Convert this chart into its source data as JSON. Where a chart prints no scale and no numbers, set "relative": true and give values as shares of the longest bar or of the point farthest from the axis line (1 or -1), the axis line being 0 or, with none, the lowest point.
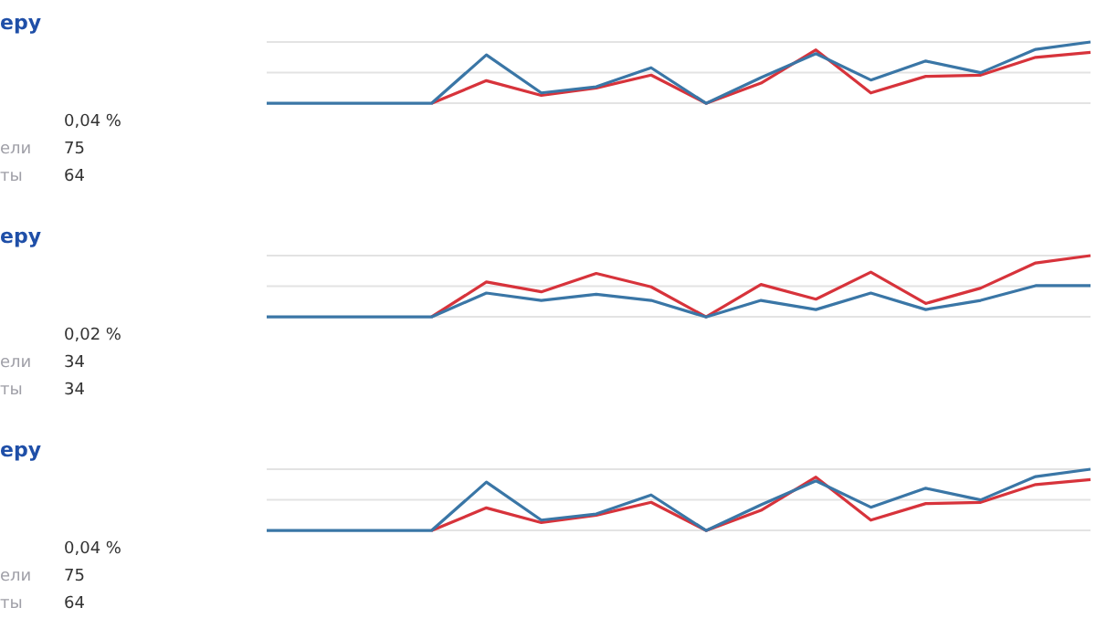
{
  "chart_data": [
    {
      "type": "other",
      "title": "еру",
      "annotations": [
        "0,04 %",
        "ели",
        "75",
        "ты",
        "64"
      ]
    },
    {
      "type": "line",
      "relative": true,
      "grid": "y",
      "legend": false,
      "marker": "none",
      "line_style": "solid",
      "categories": [
        null,
        null,
        null,
        null,
        null,
        null,
        null,
        null,
        null,
        null,
        null,
        null,
        null,
        null,
        null,
        null
      ],
      "ref_lines": [
        {
          "axis": "y",
          "value": 0.5,
          "color": "#e3e3e3"
        }
      ],
      "series": [
        {
          "color": "#3a76a6",
          "values": [
            0,
            0,
            0,
            0,
            0.79,
            0.17,
            0.27,
            0.58,
            0,
            0.42,
            0.81,
            0.38,
            0.69,
            0.5,
            0.88,
            1
          ]
        },
        {
          "color": "#d7333b",
          "values": [
            null,
            null,
            null,
            0,
            0.37,
            0.13,
            0.25,
            0.46,
            0,
            0.33,
            0.87,
            0.17,
            0.44,
            0.46,
            0.75,
            0.83
          ]
        }
      ]
    },
    {
      "type": "other",
      "title": "еру",
      "annotations": [
        "0,02 %",
        "ели",
        "34",
        "ты",
        "34"
      ]
    },
    {
      "type": "line",
      "relative": true,
      "grid": "y",
      "legend": false,
      "marker": "none",
      "line_style": "solid",
      "categories": [
        null,
        null,
        null,
        null,
        null,
        null,
        null,
        null,
        null,
        null,
        null,
        null,
        null,
        null,
        null,
        null
      ],
      "ref_lines": [
        {
          "axis": "y",
          "value": 0.5,
          "color": "#e3e3e3"
        }
      ],
      "series": [
        {
          "color": "#3a76a6",
          "values": [
            0,
            0,
            0,
            0,
            0.39,
            0.27,
            0.37,
            0.27,
            0,
            0.27,
            0.12,
            0.39,
            0.12,
            0.27,
            0.51,
            0.51
          ]
        },
        {
          "color": "#d7333b",
          "values": [
            null,
            null,
            null,
            0,
            0.57,
            0.41,
            0.71,
            0.49,
            0,
            0.53,
            0.29,
            0.73,
            0.22,
            0.47,
            0.88,
            1
          ]
        }
      ]
    },
    {
      "type": "other",
      "title": "еру",
      "annotations": [
        "0,04 %",
        "ели",
        "75",
        "ты",
        "64"
      ]
    },
    {
      "type": "line",
      "relative": true,
      "grid": "y",
      "legend": false,
      "marker": "none",
      "line_style": "solid",
      "categories": [
        null,
        null,
        null,
        null,
        null,
        null,
        null,
        null,
        null,
        null,
        null,
        null,
        null,
        null,
        null,
        null
      ],
      "ref_lines": [
        {
          "axis": "y",
          "value": 0.5,
          "color": "#e3e3e3"
        }
      ],
      "series": [
        {
          "color": "#3a76a6",
          "values": [
            0,
            0,
            0,
            0,
            0.79,
            0.17,
            0.27,
            0.58,
            0,
            0.42,
            0.81,
            0.38,
            0.69,
            0.5,
            0.88,
            1
          ]
        },
        {
          "color": "#d7333b",
          "values": [
            null,
            null,
            null,
            0,
            0.37,
            0.13,
            0.25,
            0.46,
            0,
            0.33,
            0.87,
            0.17,
            0.44,
            0.46,
            0.75,
            0.83
          ]
        }
      ]
    }
  ]
}
